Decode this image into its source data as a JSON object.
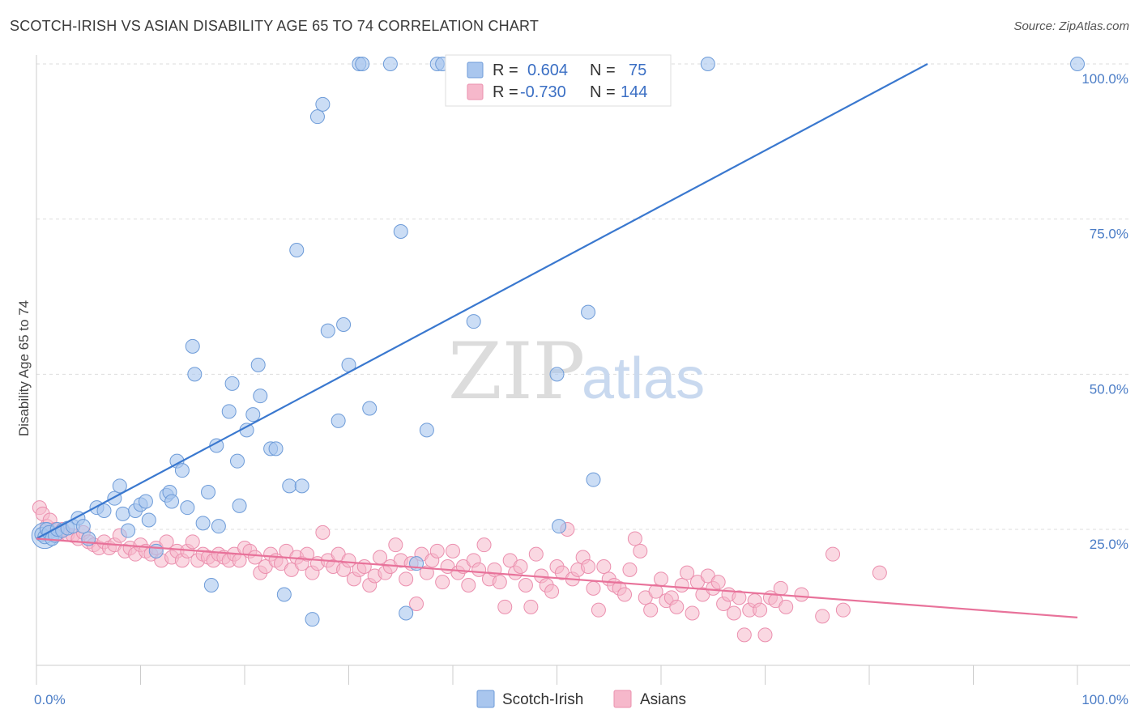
{
  "title": "SCOTCH-IRISH VS ASIAN DISABILITY AGE 65 TO 74 CORRELATION CHART",
  "source": "Source: ZipAtlas.com",
  "watermark": {
    "part1": "ZIP",
    "part2": "atlas"
  },
  "legend": {
    "rows": [
      {
        "r_label": "R =",
        "r_value": "0.604",
        "n_label": "N =",
        "n_value": "75"
      },
      {
        "r_label": "R =",
        "r_value": "-0.730",
        "n_label": "N =",
        "n_value": "144"
      }
    ]
  },
  "bottom_legend": [
    "Scotch-Irish",
    "Asians"
  ],
  "colors": {
    "scotch_irish_fill": "#a9c6ee",
    "scotch_irish_stroke": "#6d9bd8",
    "scotch_irish_line": "#3a78cf",
    "asians_fill": "#f6b8cb",
    "asians_stroke": "#eb8fae",
    "asians_line": "#e8729a",
    "tick_label": "#4a7cc6",
    "grid": "#dddddd"
  },
  "chart_data": {
    "type": "scatter",
    "title": "SCOTCH-IRISH VS ASIAN DISABILITY AGE 65 TO 74 CORRELATION CHART",
    "xlabel": "",
    "ylabel": "Disability Age 65 to 74",
    "xlim": [
      0,
      100
    ],
    "ylim": [
      5,
      102
    ],
    "x_tick_labels": [
      "0.0%",
      "100.0%"
    ],
    "y_ticks": [
      25,
      50,
      75,
      100
    ],
    "y_tick_labels": [
      "25.0%",
      "50.0%",
      "75.0%",
      "100.0%"
    ],
    "grid": true,
    "legend_position": "top-center",
    "series": [
      {
        "name": "Scotch-Irish",
        "r": 0.604,
        "n": 75,
        "trend": {
          "x": [
            0,
            85.6
          ],
          "y": [
            23.5,
            100
          ]
        },
        "points": [
          [
            0.5,
            24.2
          ],
          [
            0.8,
            23.8
          ],
          [
            1.0,
            25.0
          ],
          [
            1.2,
            24.5
          ],
          [
            1.5,
            23.5
          ],
          [
            1.8,
            24.0
          ],
          [
            2.0,
            25.0
          ],
          [
            2.5,
            24.8
          ],
          [
            3.0,
            25.2
          ],
          [
            3.5,
            25.5
          ],
          [
            4.0,
            26.8
          ],
          [
            4.5,
            25.5
          ],
          [
            5.0,
            23.5
          ],
          [
            5.8,
            28.5
          ],
          [
            6.5,
            28.0
          ],
          [
            7.5,
            30.0
          ],
          [
            8.0,
            32.0
          ],
          [
            8.3,
            27.5
          ],
          [
            8.8,
            24.8
          ],
          [
            9.5,
            28.0
          ],
          [
            10.0,
            29.0
          ],
          [
            10.5,
            29.5
          ],
          [
            10.8,
            26.5
          ],
          [
            11.5,
            21.5
          ],
          [
            12.5,
            30.5
          ],
          [
            12.8,
            31.0
          ],
          [
            13.0,
            29.5
          ],
          [
            13.5,
            36.0
          ],
          [
            14.0,
            34.5
          ],
          [
            14.5,
            28.5
          ],
          [
            15.0,
            54.5
          ],
          [
            15.2,
            50.0
          ],
          [
            16.0,
            26.0
          ],
          [
            16.5,
            31.0
          ],
          [
            16.8,
            16.0
          ],
          [
            17.3,
            38.5
          ],
          [
            17.5,
            25.5
          ],
          [
            18.5,
            44.0
          ],
          [
            18.8,
            48.5
          ],
          [
            19.3,
            36.0
          ],
          [
            19.5,
            28.8
          ],
          [
            20.2,
            41.0
          ],
          [
            20.8,
            43.5
          ],
          [
            21.3,
            51.5
          ],
          [
            21.5,
            46.5
          ],
          [
            22.5,
            38.0
          ],
          [
            23.0,
            38.0
          ],
          [
            23.8,
            14.5
          ],
          [
            24.3,
            32.0
          ],
          [
            25.0,
            70.0
          ],
          [
            25.5,
            32.0
          ],
          [
            27.0,
            91.5
          ],
          [
            27.5,
            93.5
          ],
          [
            28.0,
            57.0
          ],
          [
            29.0,
            42.5
          ],
          [
            29.5,
            58.0
          ],
          [
            30.0,
            51.5
          ],
          [
            31.0,
            100
          ],
          [
            31.3,
            100
          ],
          [
            26.5,
            10.5
          ],
          [
            32.0,
            44.5
          ],
          [
            34.0,
            100
          ],
          [
            35.0,
            73.0
          ],
          [
            35.5,
            11.5
          ],
          [
            36.5,
            19.5
          ],
          [
            37.5,
            41.0
          ],
          [
            38.5,
            100
          ],
          [
            39.0,
            100
          ],
          [
            42.0,
            58.5
          ],
          [
            50.0,
            50.0
          ],
          [
            50.2,
            25.5
          ],
          [
            53.0,
            60.0
          ],
          [
            53.5,
            33.0
          ],
          [
            64.5,
            100
          ],
          [
            100,
            100
          ]
        ]
      },
      {
        "name": "Asians",
        "r": -0.73,
        "n": 144,
        "trend": {
          "x": [
            0,
            100
          ],
          "y": [
            23.5,
            10.8
          ]
        },
        "points": [
          [
            0.3,
            28.5
          ],
          [
            0.6,
            27.5
          ],
          [
            1.0,
            25.5
          ],
          [
            1.3,
            26.5
          ],
          [
            1.8,
            25.0
          ],
          [
            2.2,
            24.5
          ],
          [
            2.5,
            25.0
          ],
          [
            3.0,
            24.2
          ],
          [
            3.5,
            24.0
          ],
          [
            4.0,
            23.5
          ],
          [
            4.5,
            24.5
          ],
          [
            5.0,
            23.0
          ],
          [
            5.5,
            22.5
          ],
          [
            6.0,
            22.0
          ],
          [
            6.5,
            23.0
          ],
          [
            7.0,
            22.0
          ],
          [
            7.5,
            22.5
          ],
          [
            8.0,
            24.0
          ],
          [
            8.5,
            21.5
          ],
          [
            9.0,
            22.0
          ],
          [
            9.5,
            21.0
          ],
          [
            10.0,
            22.5
          ],
          [
            10.5,
            21.5
          ],
          [
            11.0,
            21.0
          ],
          [
            11.5,
            22.0
          ],
          [
            12.0,
            20.0
          ],
          [
            12.5,
            23.0
          ],
          [
            13.0,
            20.5
          ],
          [
            13.5,
            21.5
          ],
          [
            14.0,
            20.0
          ],
          [
            14.5,
            21.5
          ],
          [
            15.0,
            23.0
          ],
          [
            15.5,
            20.0
          ],
          [
            16.0,
            21.0
          ],
          [
            16.5,
            20.5
          ],
          [
            17.0,
            20.0
          ],
          [
            17.5,
            21.0
          ],
          [
            18.0,
            20.5
          ],
          [
            18.5,
            20.0
          ],
          [
            19.0,
            21.0
          ],
          [
            19.5,
            20.0
          ],
          [
            20.0,
            22.0
          ],
          [
            20.5,
            21.5
          ],
          [
            21.0,
            20.5
          ],
          [
            21.5,
            18.0
          ],
          [
            22.0,
            19.0
          ],
          [
            22.5,
            21.0
          ],
          [
            23.0,
            20.0
          ],
          [
            23.5,
            19.5
          ],
          [
            24.0,
            21.5
          ],
          [
            24.5,
            18.5
          ],
          [
            25.0,
            20.5
          ],
          [
            25.5,
            19.5
          ],
          [
            26.0,
            21.0
          ],
          [
            26.5,
            18.0
          ],
          [
            27.0,
            19.5
          ],
          [
            27.5,
            24.5
          ],
          [
            28.0,
            20.0
          ],
          [
            28.5,
            19.0
          ],
          [
            29.0,
            21.0
          ],
          [
            29.5,
            18.5
          ],
          [
            30.0,
            20.0
          ],
          [
            30.5,
            17.0
          ],
          [
            31.0,
            18.5
          ],
          [
            31.5,
            19.0
          ],
          [
            32.0,
            16.0
          ],
          [
            32.5,
            17.5
          ],
          [
            33.0,
            20.5
          ],
          [
            33.5,
            18.0
          ],
          [
            34.0,
            19.0
          ],
          [
            34.5,
            22.5
          ],
          [
            35.0,
            20.0
          ],
          [
            35.5,
            17.0
          ],
          [
            36.0,
            19.5
          ],
          [
            36.5,
            13.0
          ],
          [
            37.0,
            21.0
          ],
          [
            37.5,
            18.0
          ],
          [
            38.0,
            20.0
          ],
          [
            38.5,
            21.5
          ],
          [
            39.0,
            16.5
          ],
          [
            39.5,
            19.0
          ],
          [
            40.0,
            21.5
          ],
          [
            40.5,
            18.0
          ],
          [
            41.0,
            19.0
          ],
          [
            41.5,
            16.0
          ],
          [
            42.0,
            20.0
          ],
          [
            42.5,
            18.5
          ],
          [
            43.0,
            22.5
          ],
          [
            43.5,
            17.0
          ],
          [
            44.0,
            18.5
          ],
          [
            44.5,
            16.5
          ],
          [
            45.0,
            12.5
          ],
          [
            45.5,
            20.0
          ],
          [
            46.0,
            18.0
          ],
          [
            46.5,
            19.0
          ],
          [
            47.0,
            16.0
          ],
          [
            47.5,
            12.5
          ],
          [
            48.0,
            21.0
          ],
          [
            48.5,
            17.5
          ],
          [
            49.0,
            16.0
          ],
          [
            49.5,
            15.0
          ],
          [
            50.0,
            19.0
          ],
          [
            50.5,
            18.0
          ],
          [
            51.0,
            25.0
          ],
          [
            51.5,
            17.0
          ],
          [
            52.0,
            18.5
          ],
          [
            52.5,
            20.5
          ],
          [
            53.0,
            19.0
          ],
          [
            53.5,
            15.5
          ],
          [
            54.0,
            12.0
          ],
          [
            54.5,
            19.0
          ],
          [
            55.0,
            17.0
          ],
          [
            55.5,
            16.0
          ],
          [
            56.0,
            15.5
          ],
          [
            56.5,
            14.5
          ],
          [
            57.0,
            18.5
          ],
          [
            57.5,
            23.5
          ],
          [
            58.0,
            21.5
          ],
          [
            58.5,
            14.0
          ],
          [
            59.0,
            12.0
          ],
          [
            59.5,
            15.0
          ],
          [
            60.0,
            17.0
          ],
          [
            60.5,
            13.5
          ],
          [
            61.0,
            14.0
          ],
          [
            61.5,
            12.5
          ],
          [
            62.0,
            16.0
          ],
          [
            62.5,
            18.0
          ],
          [
            63.0,
            11.5
          ],
          [
            63.5,
            16.5
          ],
          [
            64.0,
            14.5
          ],
          [
            64.5,
            17.5
          ],
          [
            65.0,
            15.5
          ],
          [
            65.5,
            16.5
          ],
          [
            66.0,
            13.0
          ],
          [
            66.5,
            14.5
          ],
          [
            67.0,
            11.5
          ],
          [
            67.5,
            14.0
          ],
          [
            68.0,
            8.0
          ],
          [
            68.5,
            12.0
          ],
          [
            69.0,
            13.5
          ],
          [
            69.5,
            12.0
          ],
          [
            70.0,
            8.0
          ],
          [
            70.5,
            14.0
          ],
          [
            71.0,
            13.5
          ],
          [
            71.5,
            15.5
          ],
          [
            72.0,
            12.5
          ],
          [
            73.5,
            14.5
          ],
          [
            75.5,
            11.0
          ],
          [
            76.5,
            21.0
          ],
          [
            77.5,
            12.0
          ],
          [
            81.0,
            18.0
          ]
        ]
      }
    ]
  }
}
